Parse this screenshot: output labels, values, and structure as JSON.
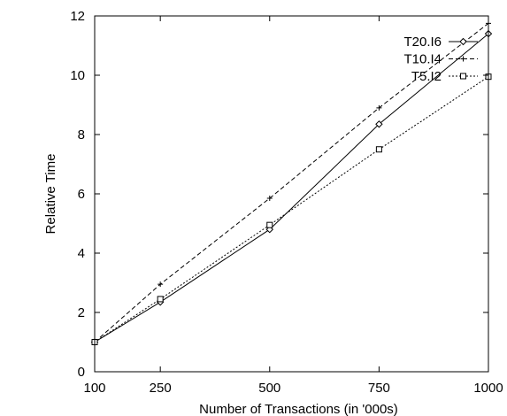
{
  "chart_data": {
    "type": "line",
    "xlabel": "Number of Transactions (in '000s)",
    "ylabel": "Relative Time",
    "x": [
      100,
      250,
      500,
      750,
      1000
    ],
    "xlim": [
      100,
      1000
    ],
    "ylim": [
      0,
      12
    ],
    "x_ticks": [
      "100",
      "250",
      "500",
      "750",
      "1000"
    ],
    "y_ticks": [
      "0",
      "2",
      "4",
      "6",
      "8",
      "10",
      "12"
    ],
    "grid": false,
    "legend_position": "top-right",
    "series": [
      {
        "name": "T20.I6",
        "values": [
          1.0,
          2.35,
          4.8,
          8.35,
          11.4
        ],
        "dash": "solid",
        "marker": "diamond"
      },
      {
        "name": "T10.I4",
        "values": [
          1.0,
          2.95,
          5.85,
          8.9,
          11.75
        ],
        "dash": "dashed",
        "marker": "plus"
      },
      {
        "name": "T5.I2",
        "values": [
          1.0,
          2.45,
          4.95,
          7.5,
          9.95
        ],
        "dash": "dotted",
        "marker": "square"
      }
    ]
  }
}
